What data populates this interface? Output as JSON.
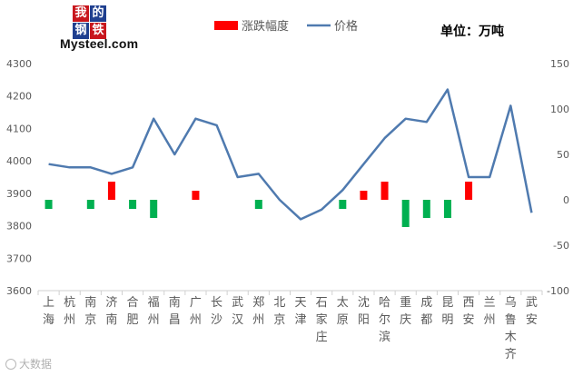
{
  "logo": {
    "chars": [
      "我",
      "的",
      "钢",
      "铁"
    ],
    "text": "Mysteel.com"
  },
  "unit_label": "单位：万吨",
  "watermark": "大数据",
  "colors": {
    "line": "#4f7aaf",
    "bar_up": "#ff0000",
    "bar_down": "#00b050",
    "axis": "#d0d0d0",
    "text": "#595959"
  },
  "chart_data": {
    "type": "bar+line",
    "legend": [
      "涨跌幅度",
      "价格"
    ],
    "legend_position": "top",
    "categories": [
      "上海",
      "杭州",
      "南京",
      "济南",
      "合肥",
      "福州",
      "南昌",
      "广州",
      "长沙",
      "武汉",
      "郑州",
      "北京",
      "天津",
      "石家庄",
      "太原",
      "沈阳",
      "哈尔滨",
      "重庆",
      "成都",
      "昆明",
      "西安",
      "兰州",
      "乌鲁木齐",
      "武安"
    ],
    "series": [
      {
        "name": "价格",
        "type": "line",
        "axis": "left",
        "values": [
          3990,
          3980,
          3980,
          3960,
          3980,
          4130,
          4020,
          4130,
          4110,
          3950,
          3960,
          3880,
          3820,
          3850,
          3910,
          3990,
          4070,
          4130,
          4120,
          4220,
          3950,
          3950,
          4170,
          3840
        ]
      },
      {
        "name": "涨跌幅度",
        "type": "bar",
        "axis": "right",
        "values": [
          -10,
          0,
          -10,
          20,
          -10,
          -20,
          0,
          10,
          0,
          0,
          -10,
          0,
          0,
          0,
          -10,
          10,
          20,
          -30,
          -20,
          -20,
          20,
          0,
          0,
          0
        ]
      }
    ],
    "y_left": {
      "min": 3600,
      "max": 4300,
      "ticks": [
        3600,
        3700,
        3800,
        3900,
        4000,
        4100,
        4200,
        4300
      ]
    },
    "y_right": {
      "min": -100,
      "max": 150,
      "ticks": [
        -100,
        -50,
        0,
        50,
        100,
        150
      ]
    },
    "grid": false
  }
}
